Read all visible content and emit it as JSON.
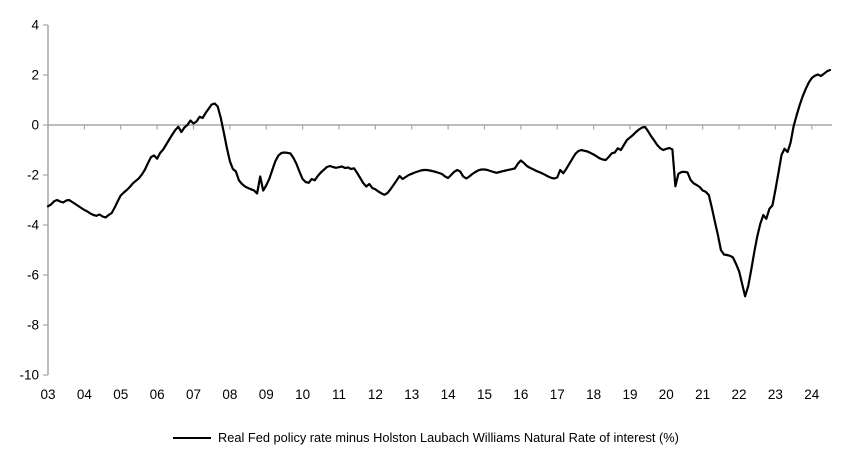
{
  "chart_data": {
    "type": "line",
    "title": "",
    "xlabel": "",
    "ylabel": "",
    "x_start": "2003-01",
    "x_end": "2024-07",
    "points_per_year": 12,
    "x_tick_labels": [
      "03",
      "04",
      "05",
      "06",
      "07",
      "08",
      "09",
      "10",
      "11",
      "12",
      "13",
      "14",
      "15",
      "16",
      "17",
      "18",
      "19",
      "20",
      "21",
      "22",
      "23",
      "24"
    ],
    "y_ticks": [
      4,
      2,
      0,
      -2,
      -4,
      -6,
      -8,
      -10
    ],
    "ylim": [
      -10,
      4
    ],
    "grid": "zero-line-only",
    "legend_position": "bottom-center",
    "axis_color": "#a6a6a6",
    "text_color": "#000000",
    "series": [
      {
        "name": "Real Fed policy rate minus Holston Laubach Williams Natural Rate of interest (%)",
        "color": "#000000",
        "values": [
          -3.25,
          -3.18,
          -3.05,
          -3.0,
          -3.06,
          -3.1,
          -3.02,
          -3.0,
          -3.08,
          -3.16,
          -3.24,
          -3.32,
          -3.4,
          -3.46,
          -3.54,
          -3.6,
          -3.63,
          -3.58,
          -3.66,
          -3.7,
          -3.6,
          -3.52,
          -3.3,
          -3.05,
          -2.82,
          -2.7,
          -2.6,
          -2.48,
          -2.33,
          -2.23,
          -2.13,
          -1.97,
          -1.78,
          -1.52,
          -1.28,
          -1.22,
          -1.35,
          -1.12,
          -0.98,
          -0.78,
          -0.58,
          -0.38,
          -0.2,
          -0.07,
          -0.28,
          -0.1,
          0.0,
          0.18,
          0.06,
          0.14,
          0.33,
          0.28,
          0.48,
          0.65,
          0.82,
          0.86,
          0.74,
          0.28,
          -0.3,
          -0.9,
          -1.45,
          -1.76,
          -1.86,
          -2.22,
          -2.36,
          -2.46,
          -2.52,
          -2.57,
          -2.62,
          -2.74,
          -2.06,
          -2.62,
          -2.42,
          -2.15,
          -1.8,
          -1.45,
          -1.22,
          -1.12,
          -1.1,
          -1.11,
          -1.14,
          -1.32,
          -1.56,
          -1.88,
          -2.16,
          -2.28,
          -2.31,
          -2.16,
          -2.21,
          -2.04,
          -1.9,
          -1.79,
          -1.68,
          -1.64,
          -1.68,
          -1.71,
          -1.69,
          -1.66,
          -1.72,
          -1.7,
          -1.76,
          -1.73,
          -1.92,
          -2.12,
          -2.32,
          -2.46,
          -2.36,
          -2.52,
          -2.57,
          -2.66,
          -2.73,
          -2.79,
          -2.72,
          -2.57,
          -2.4,
          -2.22,
          -2.04,
          -2.16,
          -2.08,
          -2.0,
          -1.95,
          -1.9,
          -1.86,
          -1.82,
          -1.8,
          -1.8,
          -1.82,
          -1.85,
          -1.88,
          -1.92,
          -1.96,
          -2.06,
          -2.12,
          -2.0,
          -1.87,
          -1.8,
          -1.86,
          -2.06,
          -2.14,
          -2.06,
          -1.96,
          -1.88,
          -1.81,
          -1.78,
          -1.78,
          -1.8,
          -1.84,
          -1.88,
          -1.91,
          -1.88,
          -1.85,
          -1.82,
          -1.79,
          -1.77,
          -1.74,
          -1.55,
          -1.42,
          -1.52,
          -1.64,
          -1.71,
          -1.77,
          -1.83,
          -1.88,
          -1.93,
          -1.99,
          -2.06,
          -2.11,
          -2.14,
          -2.1,
          -1.8,
          -1.93,
          -1.75,
          -1.55,
          -1.35,
          -1.15,
          -1.04,
          -1.0,
          -1.03,
          -1.06,
          -1.12,
          -1.18,
          -1.25,
          -1.33,
          -1.38,
          -1.4,
          -1.28,
          -1.13,
          -1.1,
          -0.93,
          -1.0,
          -0.8,
          -0.6,
          -0.5,
          -0.4,
          -0.28,
          -0.18,
          -0.1,
          -0.08,
          -0.25,
          -0.45,
          -0.62,
          -0.8,
          -0.93,
          -1.0,
          -0.95,
          -0.92,
          -0.98,
          -2.45,
          -1.95,
          -1.88,
          -1.87,
          -1.9,
          -2.2,
          -2.33,
          -2.4,
          -2.48,
          -2.62,
          -2.67,
          -2.8,
          -3.3,
          -3.85,
          -4.4,
          -5.0,
          -5.18,
          -5.2,
          -5.23,
          -5.3,
          -5.55,
          -5.85,
          -6.35,
          -6.85,
          -6.45,
          -5.8,
          -5.1,
          -4.45,
          -3.95,
          -3.6,
          -3.75,
          -3.35,
          -3.22,
          -2.6,
          -1.9,
          -1.2,
          -0.95,
          -1.08,
          -0.7,
          -0.05,
          0.4,
          0.8,
          1.15,
          1.45,
          1.7,
          1.88,
          1.97,
          2.02,
          1.96,
          2.05,
          2.15,
          2.2
        ]
      }
    ]
  }
}
